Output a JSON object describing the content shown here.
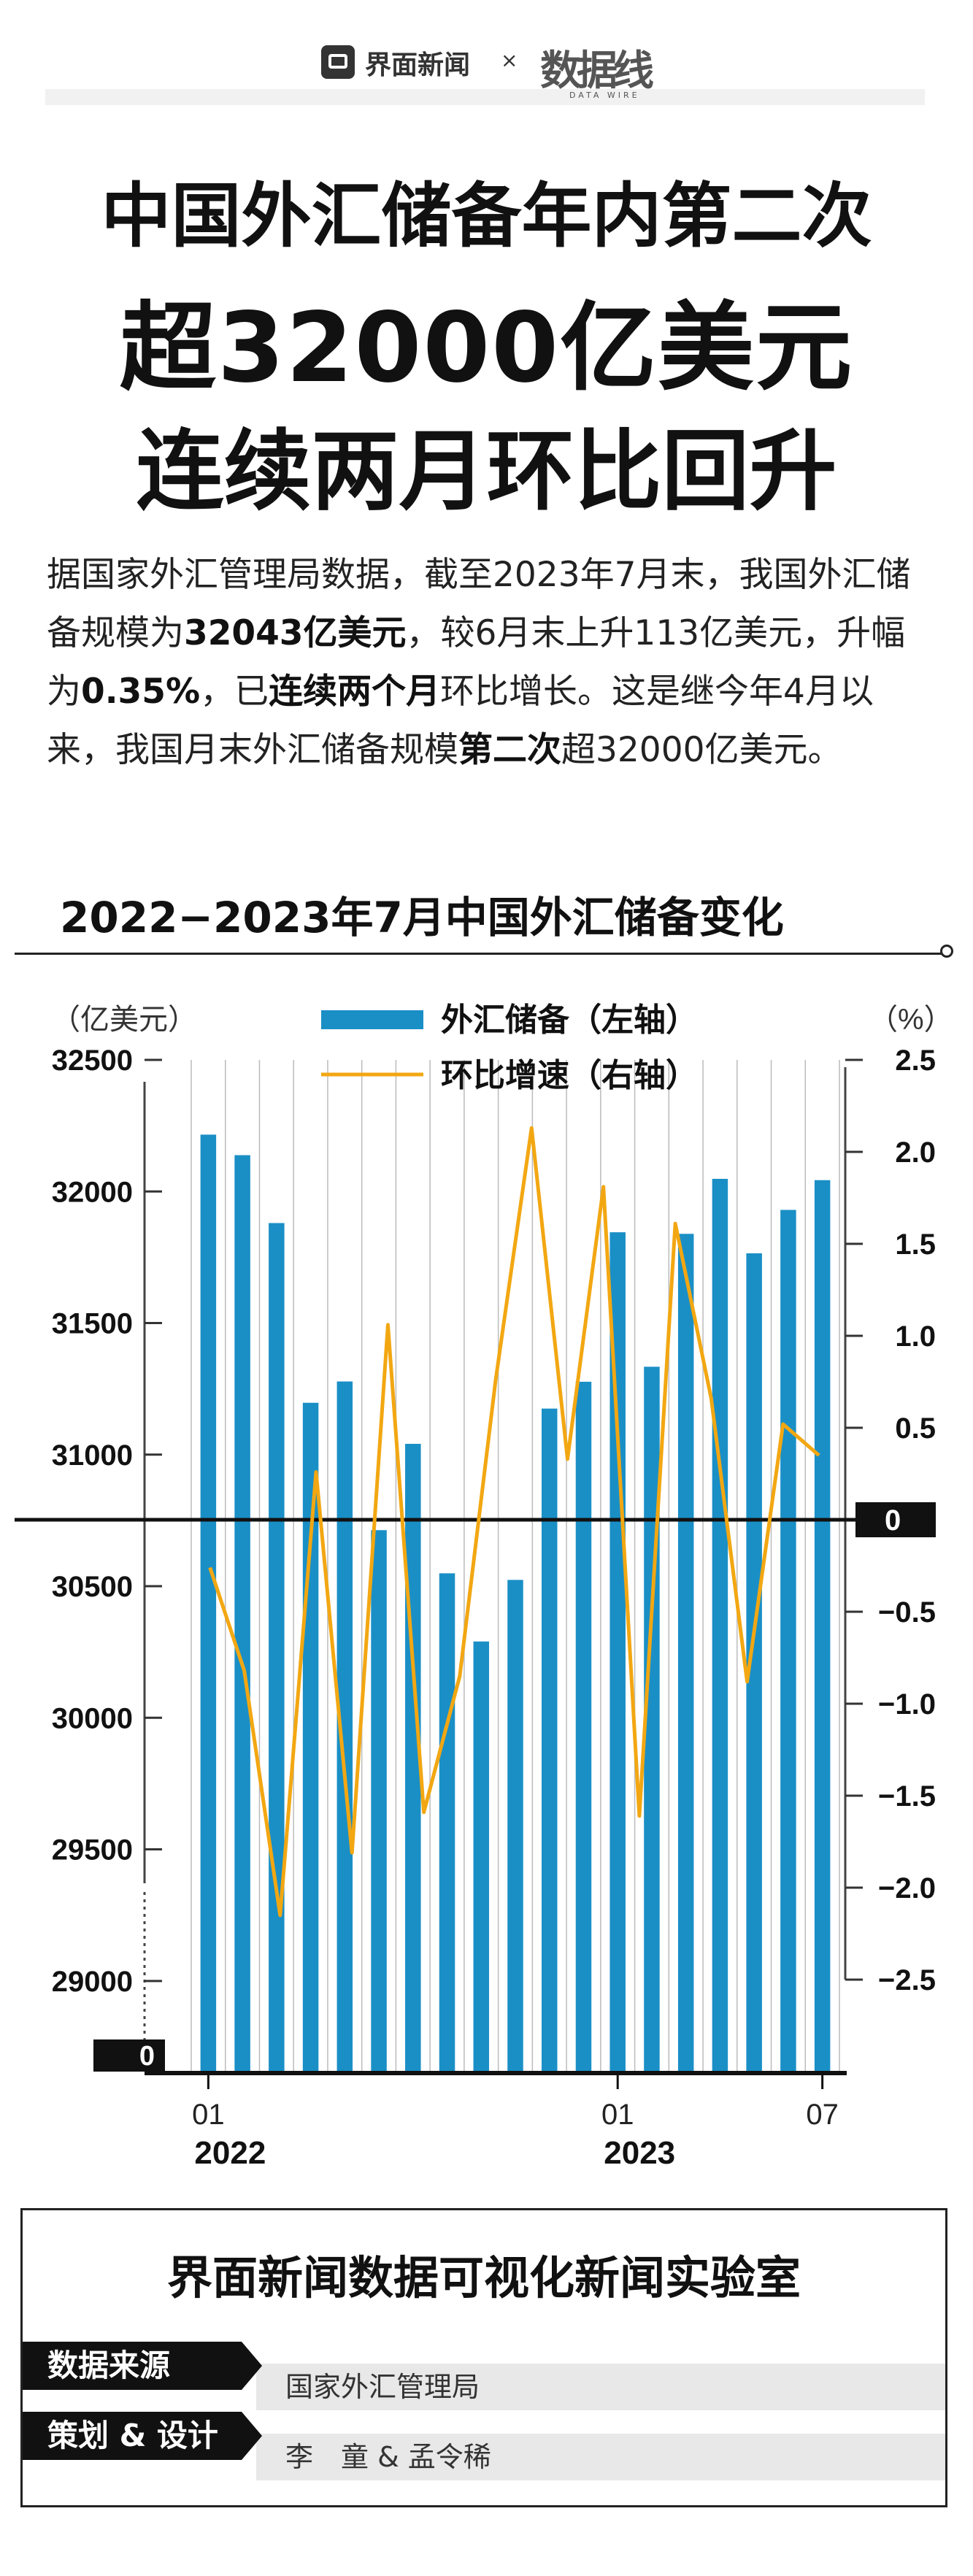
{
  "brand": {
    "name": "界面新闻",
    "separator": "×",
    "partner": "数据线",
    "partner_sub": "DATA WIRE"
  },
  "title": {
    "line1": "中国外汇储备年内第二次",
    "line2": "超32000亿美元",
    "line3": "连续两月环比回升"
  },
  "intro": {
    "p1": "据国家外汇管理局数据，截至2023年7月末，我国外汇储备规模为",
    "b1": "32043亿美元",
    "p2": "，较6月末上升113亿美元，升幅为",
    "b2": "0.35%",
    "p3": "，已",
    "b3": "连续两个月",
    "p4": "环比增长。这是继今年4月以来，我国月末外汇储备规模",
    "b4": "第二次",
    "p5": "超32000亿美元。"
  },
  "chart_title": "2022−2023年7月中国外汇储备变化",
  "chart_data": {
    "type": "bar+line",
    "title": "2022−2023年7月中国外汇储备变化",
    "left_unit": "（亿美元）",
    "right_unit": "（%）",
    "legend": {
      "bar": "外汇储备（左轴）",
      "line": "环比增速（右轴）"
    },
    "left_ticks": [
      "32500",
      "32000",
      "31500",
      "31000",
      "30500",
      "30000",
      "29500",
      "29000"
    ],
    "left_tick_values": [
      32500,
      32000,
      31500,
      31000,
      30500,
      30000,
      29500,
      29000
    ],
    "left_zero_label": "0",
    "left_ylim": [
      28650,
      32500
    ],
    "right_ticks": [
      "2.5",
      "2.0",
      "1.5",
      "1.0",
      "0.5",
      "0",
      "−0.5",
      "−1.0",
      "−1.5",
      "−2.0",
      "−2.5"
    ],
    "right_tick_values": [
      2.5,
      2.0,
      1.5,
      1.0,
      0.5,
      0,
      -0.5,
      -1.0,
      -1.5,
      -2.0,
      -2.5
    ],
    "right_ylim": [
      -2.5,
      2.5
    ],
    "x_labels": [
      {
        "index": 0,
        "month": "01",
        "year": "2022"
      },
      {
        "index": 12,
        "month": "01",
        "year": "2023"
      },
      {
        "index": 18,
        "month": "07",
        "year": ""
      }
    ],
    "months": [
      "2022-01",
      "2022-02",
      "2022-03",
      "2022-04",
      "2022-05",
      "2022-06",
      "2022-07",
      "2022-08",
      "2022-09",
      "2022-10",
      "2022-11",
      "2022-12",
      "2023-01",
      "2023-02",
      "2023-03",
      "2023-04",
      "2023-05",
      "2023-06",
      "2023-07"
    ],
    "reserves": [
      32216,
      32138,
      31880,
      31197,
      31278,
      30713,
      31041,
      30549,
      30290,
      30524,
      31175,
      31277,
      31845,
      31334,
      31839,
      32048,
      31765,
      31930,
      32043
    ],
    "mom_growth": [
      -0.26,
      -0.82,
      -2.15,
      0.26,
      -1.81,
      1.06,
      -1.59,
      -0.85,
      0.76,
      2.13,
      0.33,
      1.81,
      -1.61,
      1.61,
      0.66,
      -0.88,
      0.52,
      0.35
    ],
    "colors": {
      "bar": "#1a8fc6",
      "line": "#f2a712",
      "axis": "#111111",
      "grid": "#bbbbbb"
    }
  },
  "lab": {
    "title": "界面新闻数据可视化新闻实验室",
    "source_label": "数据来源",
    "source_value": "国家外汇管理局",
    "credit_label": "策划 & 设计",
    "credit_value": "李　童 & 孟令稀"
  }
}
